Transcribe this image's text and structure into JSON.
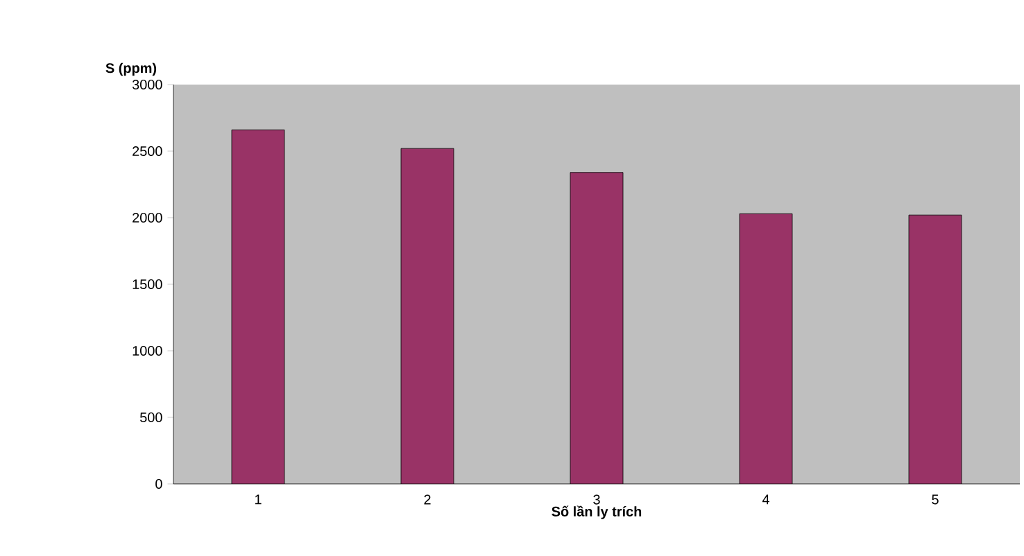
{
  "chart_data": {
    "type": "bar",
    "xlabel": "Số lần ly trích",
    "ylabel": "S (ppm)",
    "categories": [
      "1",
      "2",
      "3",
      "4",
      "5"
    ],
    "values": [
      2660,
      2520,
      2340,
      2030,
      2020
    ],
    "color": "#993366",
    "ylim": [
      0,
      3000
    ],
    "yticks": [
      0,
      500,
      1000,
      1500,
      2000,
      2500,
      3000
    ],
    "grid": false
  }
}
